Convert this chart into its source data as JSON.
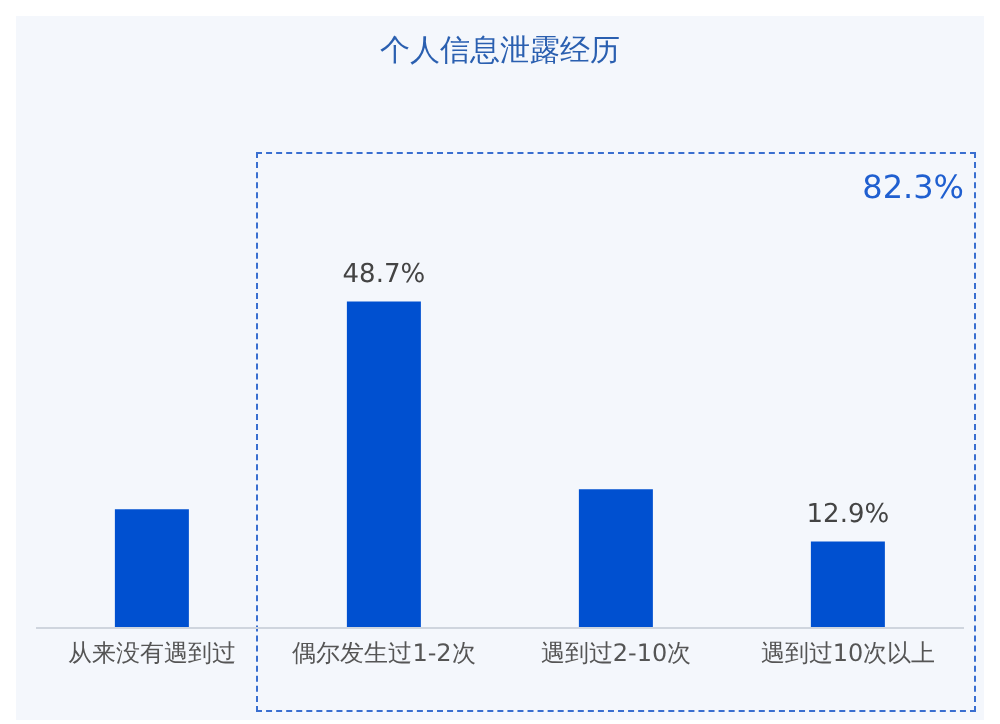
{
  "chart_data": {
    "type": "bar",
    "title": "个人信息泄露经历",
    "categories": [
      "从来没有遇到过",
      "偶尔发生过1-2次",
      "遇到过2-10次",
      "遇到过10次以上"
    ],
    "values": [
      17.7,
      48.7,
      20.7,
      12.9
    ],
    "value_labels": [
      null,
      "48.7%",
      null,
      "12.9%"
    ],
    "color": "#0050d0",
    "annotations": [
      "82.3%"
    ]
  }
}
